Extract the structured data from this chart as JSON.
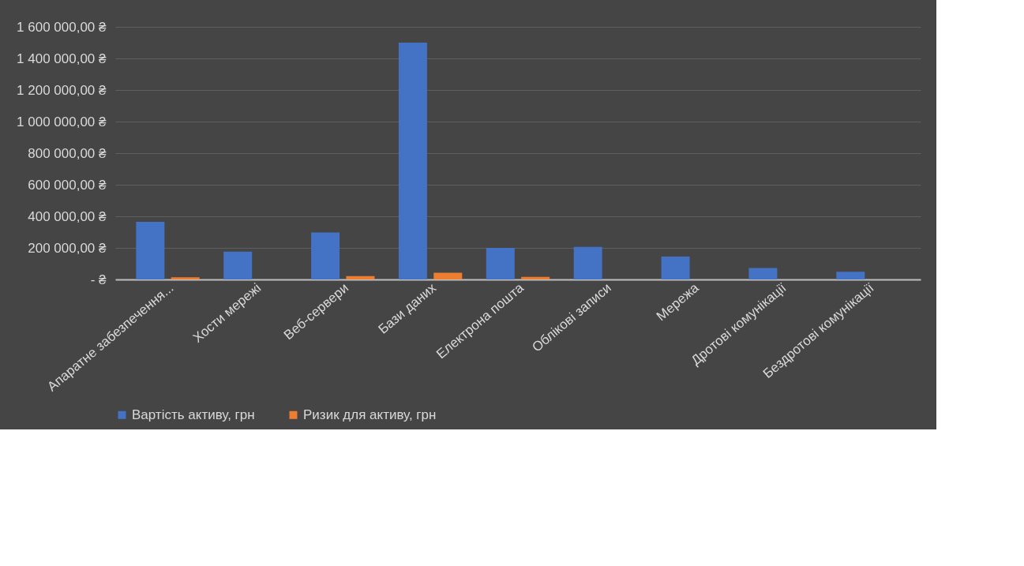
{
  "chart_data": {
    "type": "bar",
    "categories": [
      "Апаратне забезпечення...",
      "Хости мережі",
      "Веб-сервери",
      "Бази даних",
      "Електрона пошта",
      "Облікові записи",
      "Мережа",
      "Дротові комунікації",
      "Бездротові комунікації"
    ],
    "series": [
      {
        "name": "Вартість активу, грн",
        "color": "#4472c4",
        "values": [
          365000,
          176000,
          297000,
          1500000,
          200000,
          206000,
          145000,
          73000,
          49000
        ]
      },
      {
        "name": "Ризик для активу, грн",
        "color": "#ed7d31",
        "values": [
          14000,
          null,
          21000,
          43000,
          16000,
          null,
          null,
          null,
          null
        ]
      }
    ],
    "ylim": [
      0,
      1600000
    ],
    "yticks": [
      {
        "value": 0,
        "label": "-   ₴"
      },
      {
        "value": 200000,
        "label": "200 000,00 ₴"
      },
      {
        "value": 400000,
        "label": "400 000,00 ₴"
      },
      {
        "value": 600000,
        "label": "600 000,00 ₴"
      },
      {
        "value": 800000,
        "label": "800 000,00 ₴"
      },
      {
        "value": 1000000,
        "label": "1 000 000,00 ₴"
      },
      {
        "value": 1200000,
        "label": "1 200 000,00 ₴"
      },
      {
        "value": 1400000,
        "label": "1 400 000,00 ₴"
      },
      {
        "value": 1600000,
        "label": "1 600 000,00 ₴"
      }
    ],
    "grid": "y",
    "legend": "bottom"
  }
}
